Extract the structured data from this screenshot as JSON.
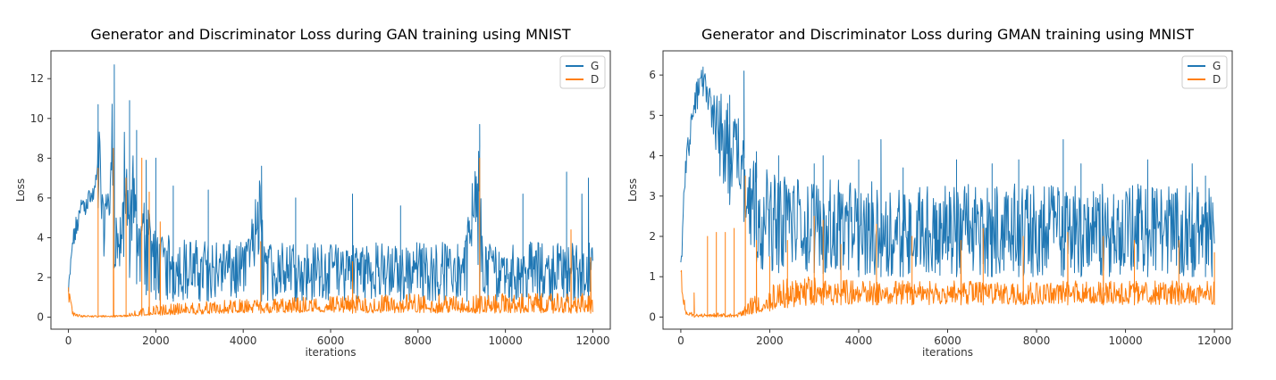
{
  "colors": {
    "G": "#1f77b4",
    "D": "#ff7f0e",
    "axis": "#333333",
    "legend_border": "#cccccc"
  },
  "chart_data": [
    {
      "type": "line",
      "title": "Generator and Discriminator Loss during GAN training using MNIST",
      "xlabel": "iterations",
      "ylabel": "Loss",
      "xlim": [
        -400,
        12400
      ],
      "ylim": [
        -0.6,
        13.4
      ],
      "xticks": [
        0,
        2000,
        4000,
        6000,
        8000,
        10000,
        12000
      ],
      "yticks": [
        0,
        2,
        4,
        6,
        8,
        10,
        12
      ],
      "x_tick_labels": [
        "0",
        "2000",
        "4000",
        "6000",
        "8000",
        "10000",
        "12000"
      ],
      "y_tick_labels": [
        "0",
        "2",
        "4",
        "6",
        "8",
        "10",
        "12"
      ],
      "legend": [
        "G",
        "D"
      ],
      "legend_position": "upper right",
      "grid": false,
      "series": [
        {
          "name": "G",
          "x": [
            0,
            100,
            200,
            300,
            400,
            500,
            600,
            700,
            800,
            900,
            1000,
            1050,
            1100,
            1200,
            1300,
            1400,
            1500,
            1600,
            1700,
            1800,
            1900,
            2000,
            2200,
            2500,
            3000,
            3500,
            4000,
            4400,
            4500,
            5000,
            5500,
            6000,
            6500,
            7000,
            7500,
            8000,
            8500,
            9000,
            9400,
            9500,
            10000,
            10500,
            11000,
            11500,
            12000
          ],
          "values": [
            1.2,
            3.8,
            4.8,
            5.6,
            5.9,
            6.1,
            6.2,
            10.7,
            4.5,
            5.5,
            12.7,
            4.2,
            3.8,
            3.6,
            10.9,
            4.5,
            9.4,
            3.4,
            5.2,
            7.9,
            3.0,
            3.2,
            2.8,
            2.6,
            2.5,
            2.5,
            2.4,
            7.6,
            2.4,
            2.5,
            2.4,
            2.4,
            2.5,
            2.4,
            2.4,
            2.4,
            2.5,
            2.4,
            9.7,
            2.4,
            2.5,
            2.4,
            2.5,
            2.4,
            2.5
          ],
          "band_low": [
            0.8,
            3.0,
            4.0,
            4.8,
            5.2,
            5.5,
            5.5,
            5.5,
            3.0,
            3.5,
            3.4,
            2.5,
            2.3,
            2.2,
            2.2,
            2.0,
            1.8,
            1.6,
            1.3,
            1.1,
            1.0,
            0.9,
            0.8,
            0.8,
            0.8,
            0.8,
            0.8,
            0.8,
            0.8,
            0.8,
            0.8,
            0.8,
            0.8,
            0.8,
            0.8,
            0.8,
            0.8,
            0.8,
            0.8,
            0.8,
            0.8,
            0.8,
            0.8,
            0.8,
            0.8
          ],
          "band_high": [
            1.5,
            4.3,
            5.4,
            6.0,
            6.3,
            6.5,
            6.8,
            7.2,
            5.8,
            6.5,
            6.5,
            5.8,
            5.4,
            5.0,
            5.0,
            4.8,
            4.7,
            4.5,
            4.5,
            4.6,
            4.5,
            4.4,
            4.2,
            4.0,
            3.9,
            3.9,
            3.8,
            3.8,
            3.8,
            3.8,
            3.8,
            3.7,
            3.8,
            3.8,
            3.7,
            3.8,
            3.8,
            3.7,
            3.8,
            3.8,
            3.8,
            3.8,
            3.8,
            3.8,
            3.8
          ],
          "spikes_x": [
            680,
            1050,
            1400,
            1560,
            1780,
            2000,
            2400,
            3200,
            4420,
            5200,
            6500,
            7600,
            9410,
            10400,
            11400,
            11750,
            11900
          ],
          "spikes_y": [
            10.7,
            12.7,
            10.9,
            9.4,
            7.9,
            8.0,
            6.6,
            6.4,
            7.6,
            6.0,
            6.2,
            5.6,
            9.7,
            6.2,
            7.3,
            6.2,
            7.0
          ]
        },
        {
          "name": "D",
          "x": [
            0,
            100,
            300,
            500,
            700,
            900,
            1000,
            1200,
            1400,
            1600,
            1800,
            2000,
            3000,
            4000,
            5000,
            6000,
            7000,
            8000,
            9000,
            10000,
            11000,
            12000
          ],
          "values": [
            1.5,
            0.1,
            0.05,
            0.05,
            0.05,
            0.05,
            0.05,
            0.05,
            0.1,
            0.1,
            0.15,
            0.2,
            0.3,
            0.35,
            0.4,
            0.4,
            0.45,
            0.5,
            0.45,
            0.5,
            0.5,
            0.5
          ],
          "band_low": [
            0.8,
            0.05,
            0.0,
            0.0,
            0.0,
            0.0,
            0.0,
            0.0,
            0.05,
            0.05,
            0.1,
            0.1,
            0.15,
            0.2,
            0.2,
            0.2,
            0.2,
            0.2,
            0.2,
            0.2,
            0.2,
            0.2
          ],
          "band_high": [
            1.5,
            0.3,
            0.1,
            0.1,
            0.1,
            0.1,
            0.1,
            0.1,
            0.3,
            0.4,
            0.5,
            0.6,
            0.8,
            0.9,
            1.0,
            1.1,
            1.1,
            1.2,
            1.1,
            1.2,
            1.2,
            1.2
          ],
          "spikes_x": [
            680,
            1030,
            1320,
            1680,
            1850,
            2100,
            4400,
            6500,
            9410,
            11500,
            11950
          ],
          "spikes_y": [
            7.5,
            8.5,
            7.0,
            8.0,
            6.3,
            4.8,
            3.8,
            2.8,
            8.0,
            4.4,
            3.0
          ]
        }
      ]
    },
    {
      "type": "line",
      "title": "Generator and Discriminator Loss during GMAN training using MNIST",
      "xlabel": "iterations",
      "ylabel": "Loss",
      "xlim": [
        -400,
        12400
      ],
      "ylim": [
        -0.3,
        6.6
      ],
      "xticks": [
        0,
        2000,
        4000,
        6000,
        8000,
        10000,
        12000
      ],
      "yticks": [
        0,
        1,
        2,
        3,
        4,
        5,
        6
      ],
      "x_tick_labels": [
        "0",
        "2000",
        "4000",
        "6000",
        "8000",
        "10000",
        "12000"
      ],
      "y_tick_labels": [
        "0",
        "1",
        "2",
        "3",
        "4",
        "5",
        "6"
      ],
      "legend": [
        "G",
        "D"
      ],
      "legend_position": "upper right",
      "grid": false,
      "series": [
        {
          "name": "G",
          "x": [
            0,
            100,
            200,
            300,
            400,
            500,
            600,
            700,
            800,
            900,
            1000,
            1100,
            1200,
            1300,
            1400,
            1500,
            1600,
            1800,
            2000,
            2500,
            3000,
            4000,
            5000,
            6000,
            7000,
            8000,
            9000,
            10000,
            11000,
            12000
          ],
          "values": [
            1.2,
            3.5,
            4.6,
            5.3,
            5.7,
            6.0,
            5.8,
            5.4,
            4.8,
            4.6,
            4.5,
            4.4,
            4.3,
            4.3,
            4.2,
            3.6,
            3.0,
            2.5,
            2.4,
            2.3,
            2.2,
            2.2,
            2.1,
            2.1,
            2.1,
            2.1,
            2.1,
            2.1,
            2.1,
            2.1
          ],
          "band_low": [
            0.8,
            3.0,
            4.0,
            4.8,
            5.2,
            5.5,
            5.2,
            4.5,
            3.5,
            3.2,
            3.0,
            2.8,
            2.6,
            2.6,
            2.5,
            2.0,
            1.5,
            1.2,
            1.1,
            1.1,
            1.1,
            1.0,
            1.0,
            1.0,
            1.0,
            1.0,
            1.0,
            1.0,
            1.0,
            1.0
          ],
          "band_high": [
            1.4,
            4.0,
            5.0,
            5.6,
            6.0,
            6.2,
            6.2,
            5.9,
            5.5,
            5.6,
            5.5,
            5.4,
            5.2,
            5.2,
            5.0,
            4.1,
            4.0,
            3.8,
            3.6,
            3.5,
            3.4,
            3.4,
            3.3,
            3.3,
            3.3,
            3.3,
            3.3,
            3.3,
            3.3,
            3.2
          ],
          "spikes_x": [
            500,
            1100,
            1420,
            1700,
            2200,
            3000,
            3200,
            4000,
            4500,
            5000,
            6200,
            7000,
            7600,
            8600,
            9000,
            10500,
            11500,
            11800
          ],
          "spikes_y": [
            6.2,
            5.5,
            6.1,
            4.1,
            4.0,
            3.8,
            4.0,
            3.9,
            4.4,
            3.7,
            3.9,
            3.8,
            3.9,
            4.4,
            3.8,
            3.9,
            3.8,
            3.5
          ]
        },
        {
          "name": "D",
          "x": [
            0,
            100,
            300,
            500,
            700,
            900,
            1100,
            1300,
            1500,
            1700,
            2000,
            2500,
            3000,
            4000,
            5000,
            6000,
            7000,
            8000,
            9000,
            10000,
            11000,
            12000
          ],
          "values": [
            1.0,
            0.1,
            0.05,
            0.05,
            0.05,
            0.05,
            0.05,
            0.05,
            0.1,
            0.2,
            0.3,
            0.5,
            0.6,
            0.6,
            0.6,
            0.6,
            0.6,
            0.6,
            0.6,
            0.6,
            0.6,
            0.6
          ],
          "band_low": [
            0.7,
            0.05,
            0.0,
            0.0,
            0.0,
            0.0,
            0.0,
            0.0,
            0.05,
            0.1,
            0.15,
            0.25,
            0.3,
            0.3,
            0.3,
            0.3,
            0.3,
            0.3,
            0.3,
            0.3,
            0.3,
            0.3
          ],
          "band_high": [
            1.4,
            0.2,
            0.1,
            0.1,
            0.1,
            0.1,
            0.1,
            0.1,
            0.4,
            0.6,
            0.8,
            1.0,
            1.0,
            0.9,
            0.9,
            0.9,
            0.9,
            0.9,
            0.9,
            0.9,
            0.9,
            0.9
          ],
          "spikes_x": [
            300,
            600,
            800,
            1000,
            1200,
            1450,
            1700,
            2000,
            2400,
            3000,
            3200,
            3600,
            4400,
            5200,
            6300,
            6800,
            7700,
            8700,
            9500,
            10200,
            11200,
            12000
          ],
          "spikes_y": [
            0.6,
            2.0,
            2.1,
            2.1,
            2.2,
            3.5,
            1.9,
            1.5,
            1.9,
            2.5,
            2.4,
            1.8,
            2.3,
            2.0,
            1.9,
            2.2,
            2.0,
            2.1,
            2.0,
            1.9,
            1.9,
            1.6
          ]
        }
      ]
    }
  ]
}
